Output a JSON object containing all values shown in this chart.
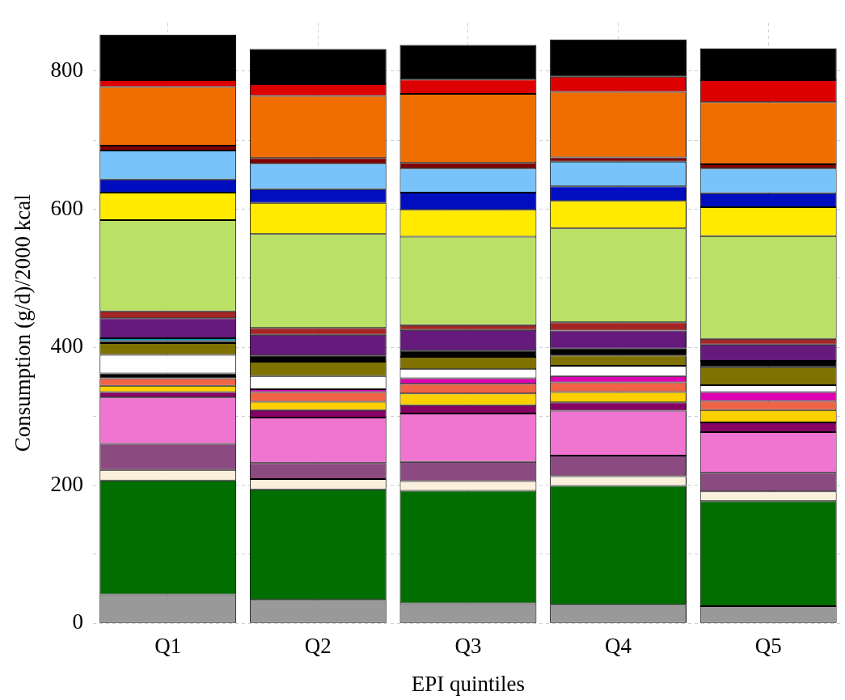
{
  "chart_data": {
    "type": "bar",
    "stacked": true,
    "xlabel": "EPI quintiles",
    "ylabel": "Consumption (g/d)/2000 kcal",
    "categories": [
      "Q1",
      "Q2",
      "Q3",
      "Q4",
      "Q5"
    ],
    "ylim": [
      0,
      870
    ],
    "yticks": [
      0,
      {
        "value": 100,
        "label": null
      },
      200,
      {
        "value": 300,
        "label": null
      },
      400,
      {
        "value": 500,
        "label": null
      },
      600,
      {
        "value": 700,
        "label": null
      },
      800
    ],
    "grid": true,
    "legend": false,
    "series": [
      {
        "color": "#999999",
        "values": [
          42,
          34,
          29,
          27,
          25
        ]
      },
      {
        "color": "#006e00",
        "values": [
          165,
          160,
          163,
          172,
          152
        ]
      },
      {
        "color": "#faf0dc",
        "values": [
          15,
          15,
          14,
          14,
          14
        ]
      },
      {
        "color": "#8b4a80",
        "values": [
          38,
          23,
          28,
          30,
          27
        ]
      },
      {
        "color": "#ef75d0",
        "values": [
          67,
          66,
          70,
          65,
          59
        ]
      },
      {
        "color": "#870064",
        "values": [
          8,
          11,
          12,
          12,
          14
        ]
      },
      {
        "color": "#ffd000",
        "values": [
          9,
          12,
          17,
          15,
          18
        ]
      },
      {
        "color": "#f06446",
        "values": [
          11,
          14,
          14,
          14,
          13
        ]
      },
      {
        "color": "#e000b4",
        "values": [
          null,
          4,
          8,
          9,
          13
        ]
      },
      {
        "color": "#000000",
        "values": [
          7,
          null,
          null,
          null,
          null
        ]
      },
      {
        "color": "#ffffff",
        "values": [
          27,
          19,
          13,
          15,
          10
        ]
      },
      {
        "color": "#7f7200",
        "values": [
          17,
          21,
          18,
          15,
          26
        ]
      },
      {
        "color": "#000000",
        "values": [
          3,
          9,
          9,
          10,
          9
        ]
      },
      {
        "color": "#0093b8",
        "values": [
          4,
          null,
          null,
          null,
          null
        ]
      },
      {
        "color": "#661a7c",
        "values": [
          29,
          30,
          30,
          26,
          24
        ]
      },
      {
        "color": "#a52525",
        "values": [
          10,
          10,
          7,
          12,
          8
        ]
      },
      {
        "color": "#bbe066",
        "values": [
          132,
          136,
          128,
          136,
          149
        ]
      },
      {
        "color": "#ffea00",
        "values": [
          40,
          45,
          39,
          40,
          42
        ]
      },
      {
        "color": "#000ec0",
        "values": [
          19,
          20,
          25,
          21,
          20
        ]
      },
      {
        "color": "#78c4fa",
        "values": [
          42,
          37,
          35,
          36,
          36
        ]
      },
      {
        "color": "#800000",
        "values": [
          7,
          8,
          8,
          6,
          6
        ]
      },
      {
        "color": "#f06e00",
        "values": [
          85,
          90,
          100,
          95,
          90
        ]
      },
      {
        "color": "#dc0000",
        "values": [
          10,
          17,
          21,
          22,
          32
        ]
      },
      {
        "color": "#000000",
        "values": [
          66,
          51,
          50,
          54,
          46
        ]
      }
    ]
  }
}
